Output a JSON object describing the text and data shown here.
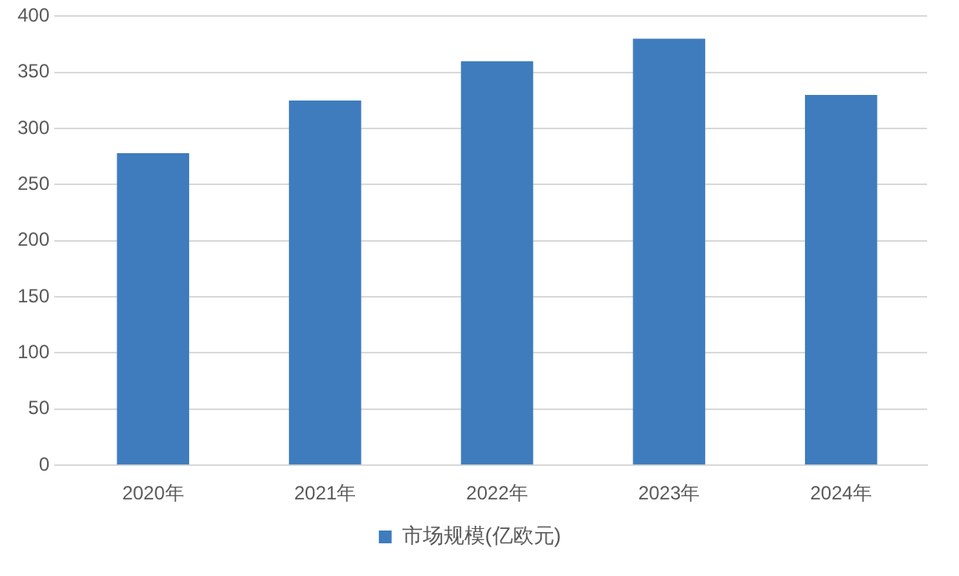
{
  "chart_data": {
    "type": "bar",
    "categories": [
      "2020年",
      "2021年",
      "2022年",
      "2023年",
      "2024年"
    ],
    "series": [
      {
        "name": "市场规模(亿欧元)",
        "color": "#3f7cbd",
        "values": [
          278,
          325,
          360,
          380,
          330
        ]
      }
    ],
    "ylim": [
      0,
      400
    ],
    "yticks": [
      0,
      50,
      100,
      150,
      200,
      250,
      300,
      350,
      400
    ],
    "grid": "y",
    "legend": "bottom"
  }
}
